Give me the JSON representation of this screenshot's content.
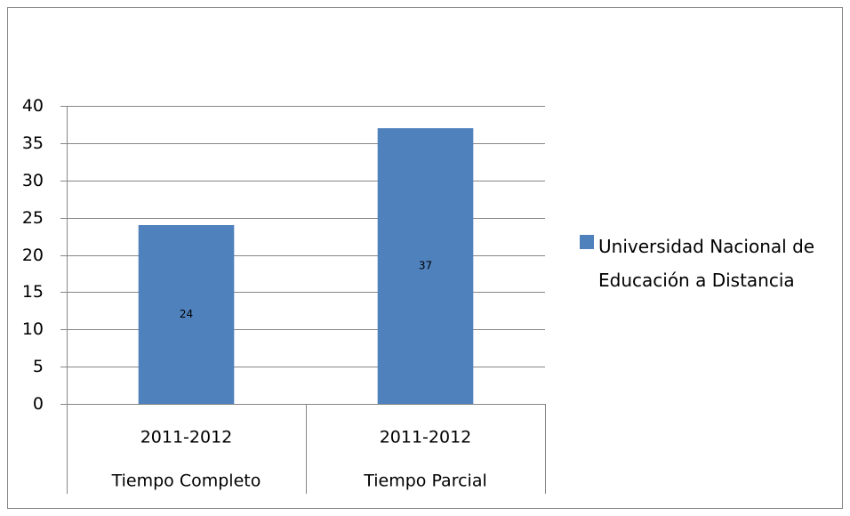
{
  "chart_data": {
    "type": "bar",
    "categories": [
      [
        "2011-2012",
        "Tiempo Completo"
      ],
      [
        "2011-2012",
        "Tiempo Parcial"
      ]
    ],
    "series": [
      {
        "name": "Universidad Nacional de Educación a Distancia",
        "color": "#4f81bd",
        "values": [
          24,
          37
        ]
      }
    ],
    "ylim": [
      0,
      40
    ],
    "yticks": [
      0,
      5,
      10,
      15,
      20,
      25,
      30,
      35,
      40
    ],
    "grid": true,
    "legend": "right"
  }
}
